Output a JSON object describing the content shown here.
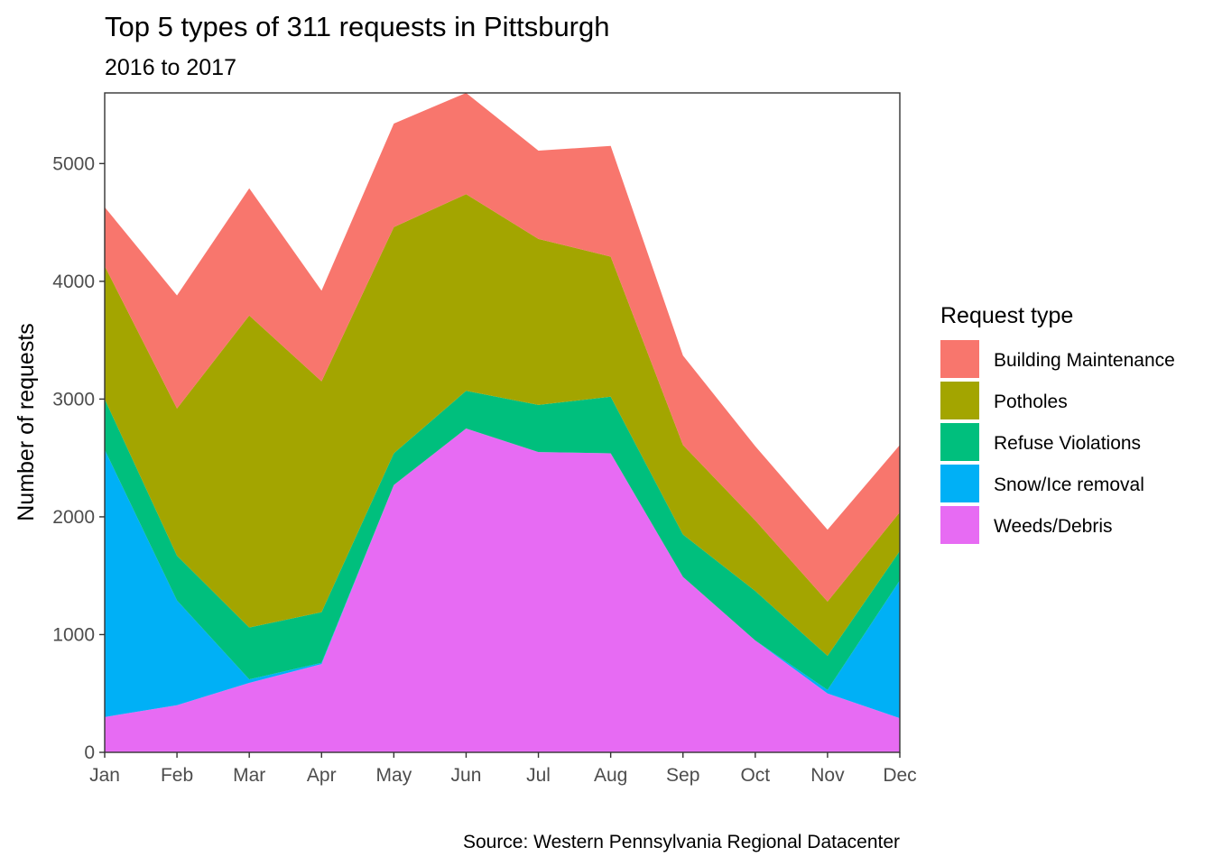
{
  "chart_data": {
    "type": "area",
    "stacked": true,
    "title": "Top 5 types of 311 requests in Pittsburgh",
    "subtitle": "2016 to 2017",
    "xlabel": "",
    "ylabel": "Number of requests",
    "caption": "Source: Western Pennsylvania Regional Datacenter",
    "categories": [
      "Jan",
      "Feb",
      "Mar",
      "Apr",
      "May",
      "Jun",
      "Jul",
      "Aug",
      "Sep",
      "Oct",
      "Nov",
      "Dec"
    ],
    "ylim": [
      0,
      5600
    ],
    "yticks": [
      0,
      1000,
      2000,
      3000,
      4000,
      5000
    ],
    "ytick_labels": [
      "0",
      "1000",
      "2000",
      "3000",
      "4000",
      "5000"
    ],
    "grid": false,
    "legend": {
      "title": "Request type",
      "position": "right"
    },
    "series": [
      {
        "name": "Weeds/Debris",
        "color": "#E76BF3",
        "values": [
          300,
          400,
          590,
          750,
          2270,
          2750,
          2550,
          2540,
          1490,
          950,
          500,
          290
        ]
      },
      {
        "name": "Snow/Ice removal",
        "color": "#00B0F6",
        "values": [
          2270,
          890,
          30,
          10,
          0,
          0,
          0,
          0,
          0,
          0,
          30,
          1170
        ]
      },
      {
        "name": "Refuse Violations",
        "color": "#00BF7D",
        "values": [
          430,
          380,
          440,
          430,
          270,
          320,
          400,
          480,
          360,
          420,
          290,
          250
        ]
      },
      {
        "name": "Potholes",
        "color": "#A3A500",
        "values": [
          1130,
          1250,
          2650,
          1960,
          1920,
          1670,
          1410,
          1190,
          760,
          600,
          460,
          330
        ]
      },
      {
        "name": "Building Maintenance",
        "color": "#F8766D",
        "values": [
          500,
          960,
          1080,
          770,
          880,
          860,
          750,
          940,
          760,
          630,
          610,
          570
        ]
      }
    ],
    "legend_order": [
      "Building Maintenance",
      "Potholes",
      "Refuse Violations",
      "Snow/Ice removal",
      "Weeds/Debris"
    ]
  }
}
